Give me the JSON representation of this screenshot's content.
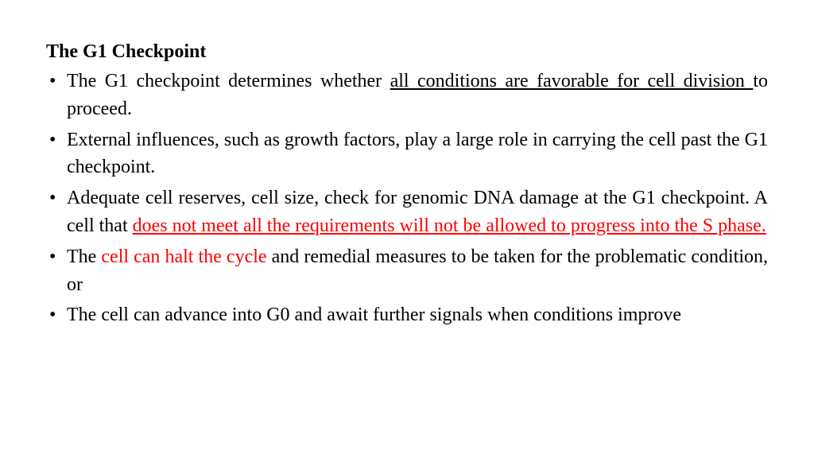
{
  "title": "The G1 Checkpoint",
  "colors": {
    "text": "#000000",
    "highlight": "#ff0000",
    "background": "#ffffff"
  },
  "typography": {
    "font_family": "Times New Roman",
    "title_fontsize_pt": 18,
    "body_fontsize_pt": 18,
    "title_weight": "bold",
    "body_weight": "normal",
    "alignment": "justify"
  },
  "bullets": [
    {
      "segments": [
        {
          "text": "The G1 checkpoint determines whether ",
          "underline": false,
          "color": "#000000"
        },
        {
          "text": "all conditions are favorable for cell division ",
          "underline": true,
          "color": "#000000"
        },
        {
          "text": "to proceed.",
          "underline": false,
          "color": "#000000"
        }
      ]
    },
    {
      "segments": [
        {
          "text": "External influences, such as growth factors, play a large role in carrying the cell past the G1 checkpoint.",
          "underline": false,
          "color": "#000000"
        }
      ]
    },
    {
      "segments": [
        {
          "text": "Adequate cell reserves, cell size, check for genomic DNA damage at the G1 checkpoint. A cell that ",
          "underline": false,
          "color": "#000000"
        },
        {
          "text": "does not meet all the requirements will not be allowed to progress into the S phase.",
          "underline": true,
          "color": "#ff0000"
        }
      ]
    },
    {
      "segments": [
        {
          "text": "The ",
          "underline": false,
          "color": "#000000"
        },
        {
          "text": "cell can halt the cycle",
          "underline": false,
          "color": "#ff0000"
        },
        {
          "text": " and remedial measures to be taken for the problematic condition, or",
          "underline": false,
          "color": "#000000"
        }
      ]
    },
    {
      "segments": [
        {
          "text": "The cell can advance into G0 and await further signals when conditions improve",
          "underline": false,
          "color": "#000000"
        }
      ]
    }
  ]
}
